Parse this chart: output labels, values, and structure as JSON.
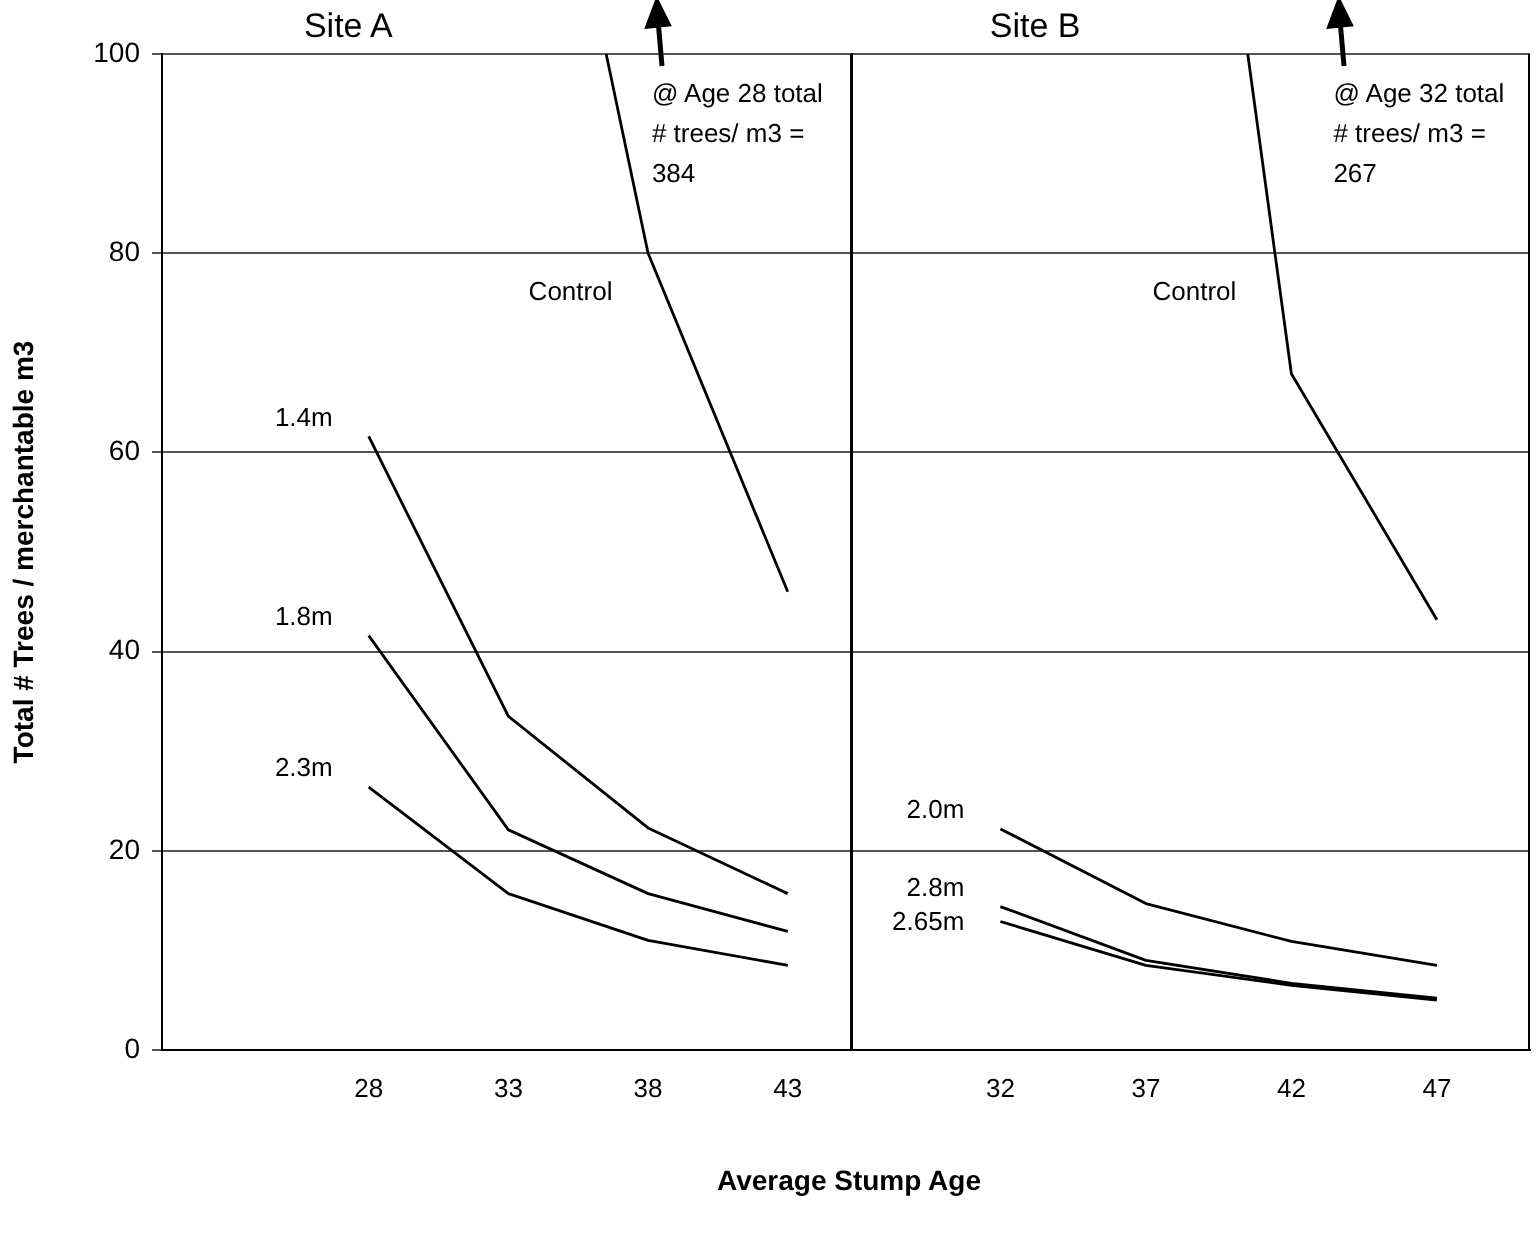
{
  "chart_data": [
    {
      "type": "line",
      "title": "Site A",
      "ylabel": "Total # Trees / merchantable m3",
      "xlabel": "Average Stump Age",
      "xlim": [
        20.6,
        45.3
      ],
      "xticks": [
        28,
        33,
        38,
        43
      ],
      "ylim": [
        0,
        100
      ],
      "yticks": [
        0,
        20,
        40,
        60,
        80,
        100
      ],
      "grid": "y",
      "series": [
        {
          "name": "Control",
          "color": "#000000",
          "x": [
            36.5,
            38,
            43
          ],
          "values": [
            100,
            80,
            46
          ]
        },
        {
          "name": "1.4m",
          "color": "#000000",
          "x": [
            28,
            33,
            38,
            43
          ],
          "values": [
            61.6,
            33.5,
            22.3,
            15.7
          ]
        },
        {
          "name": "1.8m",
          "color": "#000000",
          "x": [
            28,
            33,
            38,
            43
          ],
          "values": [
            41.6,
            22.1,
            15.7,
            11.9
          ]
        },
        {
          "name": "2.3m",
          "color": "#000000",
          "x": [
            28,
            33,
            38,
            43
          ],
          "values": [
            26.4,
            15.7,
            11.0,
            8.5
          ]
        }
      ],
      "annotations": [
        "@ Age 28 total # trees/ m3 = 384"
      ]
    },
    {
      "type": "line",
      "title": "Site B",
      "tick_labels": "x",
      "xlim": [
        26.9,
        50.2
      ],
      "xticks": [
        32,
        37,
        42,
        47
      ],
      "ylim": [
        0,
        100
      ],
      "yticks": [
        0,
        20,
        40,
        60,
        80,
        100
      ],
      "grid": "y",
      "series": [
        {
          "name": "Control",
          "color": "#000000",
          "x": [
            40.5,
            42,
            47
          ],
          "values": [
            100,
            67.9,
            43.2
          ]
        },
        {
          "name": "2.0m",
          "color": "#000000",
          "x": [
            32,
            37,
            42,
            47
          ],
          "values": [
            22.2,
            14.7,
            10.9,
            8.5
          ]
        },
        {
          "name": "2.8m",
          "color": "#000000",
          "x": [
            32,
            37,
            42,
            47
          ],
          "values": [
            14.4,
            9.0,
            6.7,
            5.2
          ]
        },
        {
          "name": "2.65m",
          "color": "#000000",
          "x": [
            32,
            37,
            42,
            47
          ],
          "values": [
            12.9,
            8.5,
            6.5,
            5.0
          ]
        }
      ],
      "annotations": [
        "@ Age 32 total # trees/ m3 = 267"
      ]
    }
  ]
}
